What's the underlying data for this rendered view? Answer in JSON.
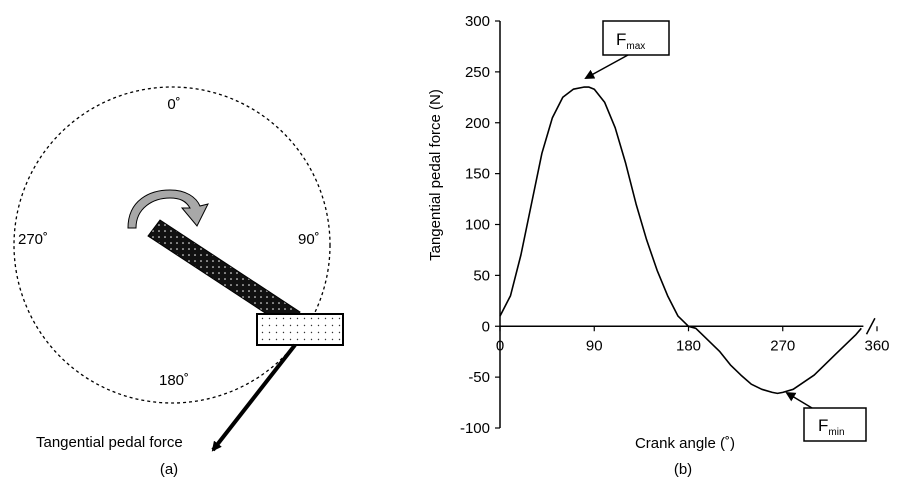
{
  "panel_a": {
    "label": "(a)",
    "angle_labels": {
      "top": "0˚",
      "right": "90˚",
      "bottom": "180˚",
      "left": "270˚"
    },
    "force_label": "Tangential pedal force",
    "icons": {
      "rotation": "clockwise-arrow-icon",
      "crank": "crank-arm-icon",
      "pedal": "pedal-icon"
    }
  },
  "panel_b": {
    "label": "(b)",
    "callouts": {
      "max": {
        "main": "F",
        "sub": "max"
      },
      "min": {
        "main": "F",
        "sub": "min"
      }
    }
  },
  "chart_data": {
    "type": "line",
    "title": "",
    "xlabel": "Crank angle (˚)",
    "ylabel": "Tangential pedal force (N)",
    "xlim": [
      0,
      360
    ],
    "ylim": [
      -100,
      300
    ],
    "xticks": [
      0,
      90,
      180,
      270,
      360
    ],
    "yticks": [
      -100,
      -50,
      0,
      50,
      100,
      150,
      200,
      250,
      300
    ],
    "grid": false,
    "series": [
      {
        "x": [
          0,
          10,
          20,
          30,
          40,
          50,
          60,
          70,
          80,
          85,
          90,
          100,
          110,
          120,
          130,
          140,
          150,
          160,
          170,
          180,
          187,
          195,
          210,
          220,
          230,
          240,
          250,
          260,
          265,
          270,
          280,
          290,
          300,
          310,
          320,
          330,
          340,
          345
        ],
        "y": [
          10,
          30,
          70,
          120,
          170,
          205,
          225,
          233,
          235,
          235,
          233,
          220,
          195,
          160,
          120,
          85,
          55,
          30,
          10,
          0,
          -2,
          -10,
          -25,
          -38,
          -48,
          -57,
          -62,
          -65,
          -66,
          -65,
          -62,
          -55,
          -48,
          -38,
          -28,
          -18,
          -8,
          -2
        ]
      }
    ],
    "annotations": [
      {
        "text": "F max",
        "at": {
          "x": 85,
          "y": 235
        }
      },
      {
        "text": "F min",
        "at": {
          "x": 265,
          "y": -66
        }
      }
    ]
  }
}
